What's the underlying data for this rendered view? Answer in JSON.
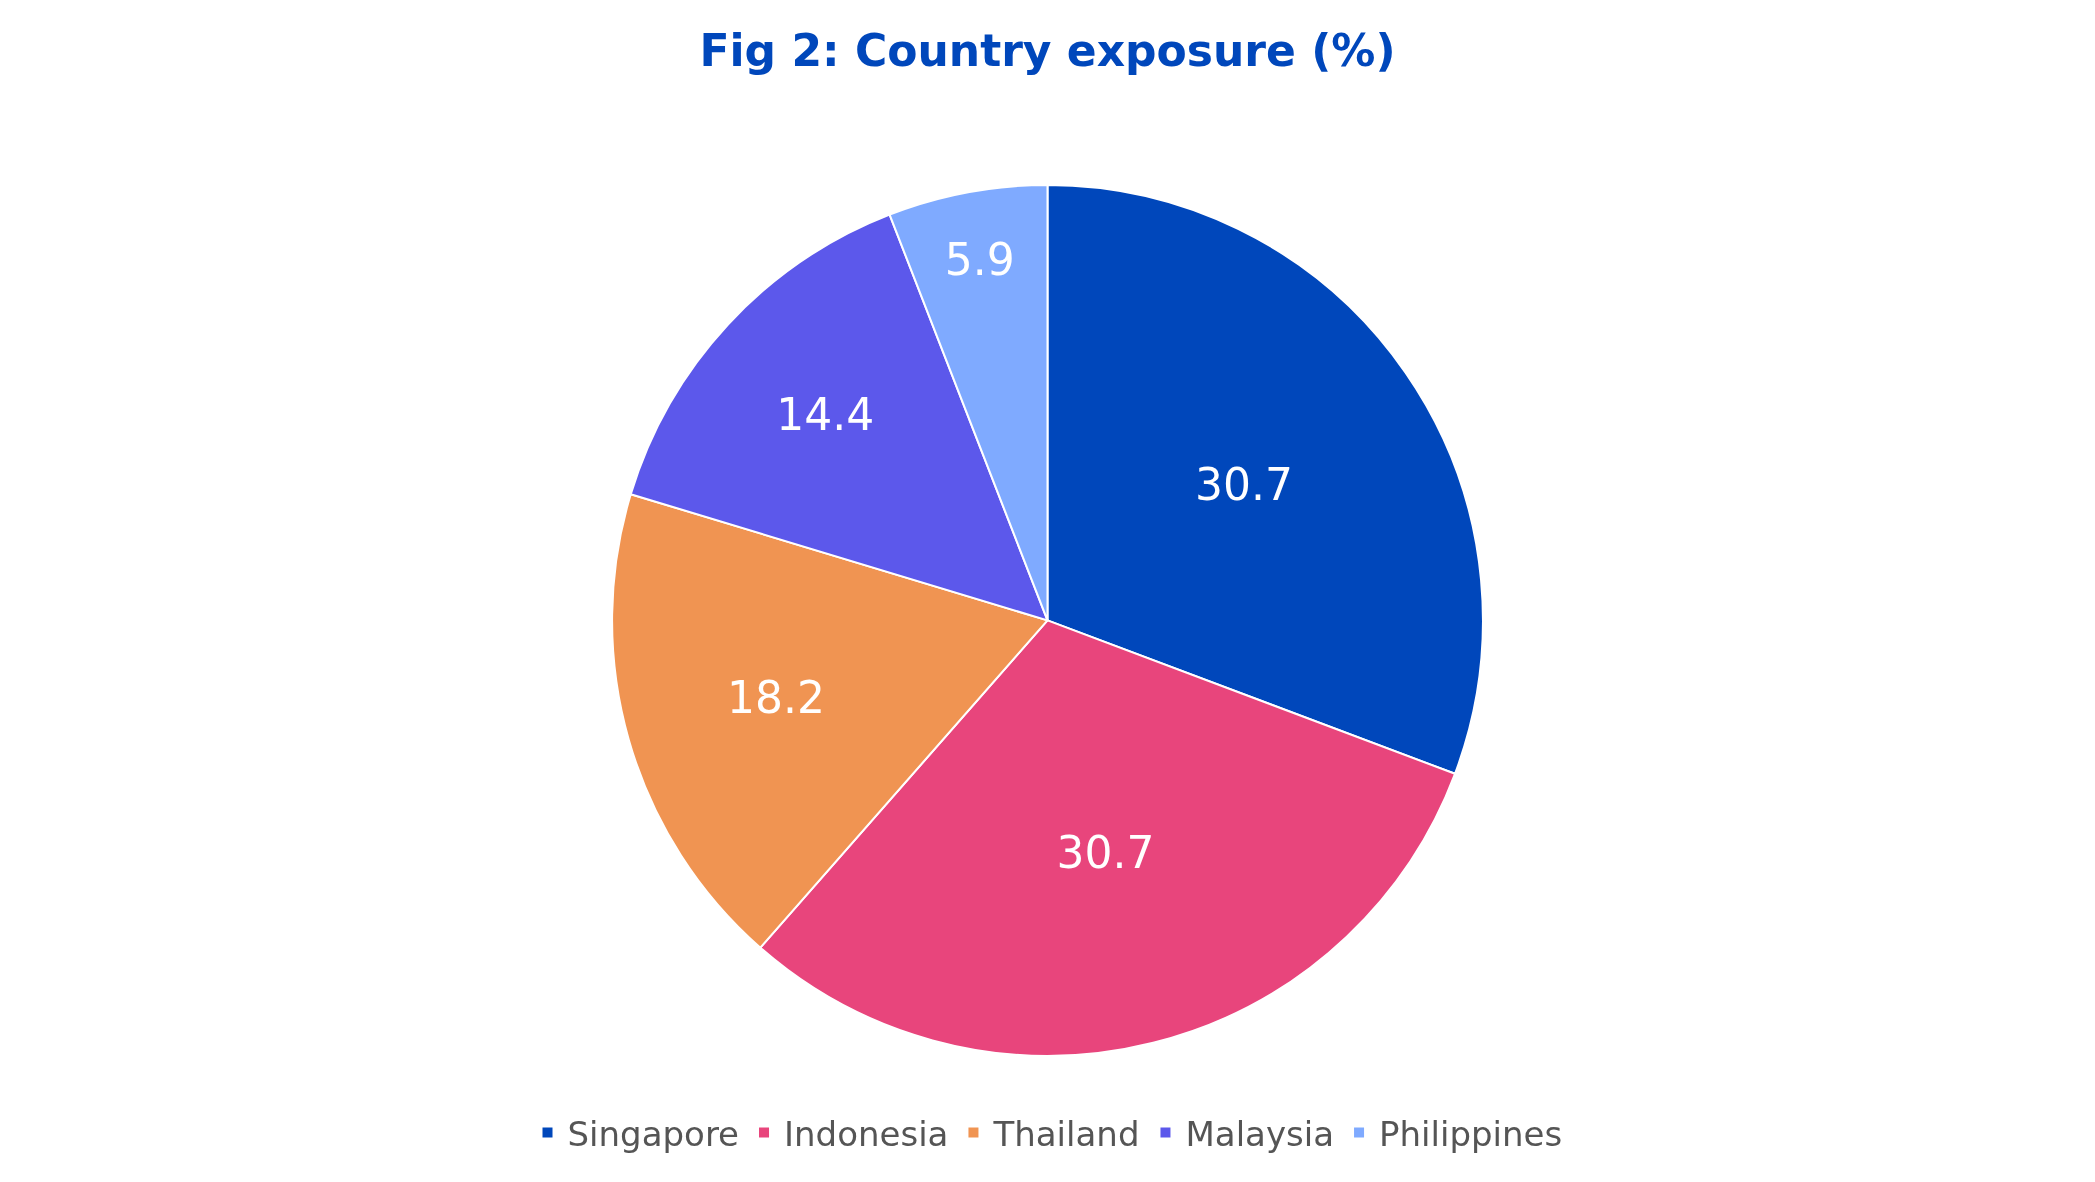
{
  "chart_data": {
    "type": "pie",
    "title": "Fig 2: Country exposure (%)",
    "categories": [
      "Singapore",
      "Indonesia",
      "Thailand",
      "Malaysia",
      "Philippines"
    ],
    "values": [
      30.7,
      30.7,
      18.2,
      14.4,
      5.9
    ],
    "colors": [
      "#0047bb",
      "#e8457c",
      "#f09452",
      "#5c58eb",
      "#7faaff"
    ],
    "data_labels": true,
    "legend": "bottom"
  }
}
